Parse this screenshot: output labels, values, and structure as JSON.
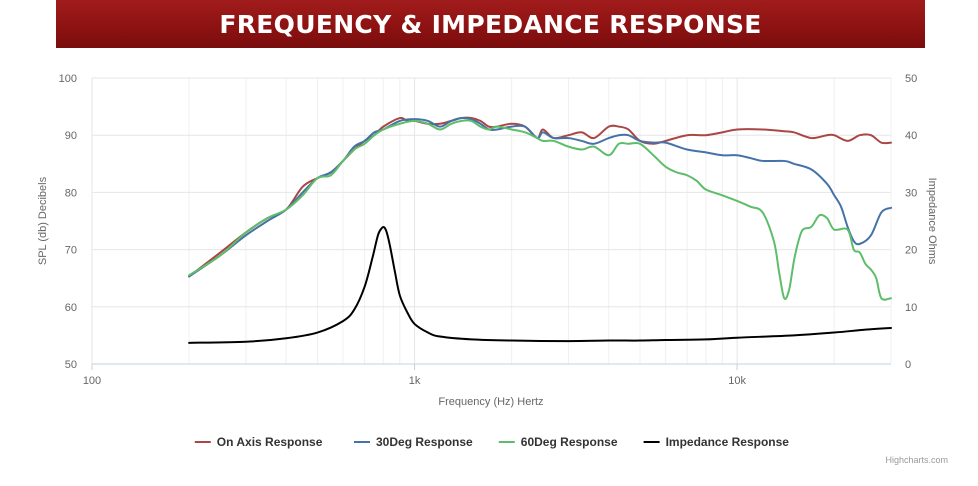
{
  "banner": {
    "title": "FREQUENCY & IMPEDANCE RESPONSE"
  },
  "credits": "Highcharts.com",
  "colors": {
    "banner": "#8e1212",
    "on_axis": "#aa4643",
    "deg30": "#4572a7",
    "deg60": "#5ebd6a",
    "impedance": "#000000",
    "grid": "#e6e6e6",
    "minor_grid": "#f0f0f0"
  },
  "chart_data": {
    "type": "line",
    "title": "FREQUENCY & IMPEDANCE RESPONSE",
    "xlabel": "Frequency (Hz) Hertz",
    "ylabel": "SPL (db) Decibels",
    "y2label": "Impedance Ohms",
    "x_scale": "log",
    "xlim": [
      100,
      30000
    ],
    "ylim": [
      50,
      100
    ],
    "y2lim": [
      0,
      50
    ],
    "x_ticks": [
      {
        "value": 100,
        "label": "100"
      },
      {
        "value": 1000,
        "label": "1k"
      },
      {
        "value": 10000,
        "label": "10k"
      }
    ],
    "y_ticks": [
      50,
      60,
      70,
      80,
      90,
      100
    ],
    "y2_ticks": [
      0,
      10,
      20,
      30,
      40,
      50
    ],
    "grid": true,
    "legend": "bottom-center",
    "series": [
      {
        "name": "On Axis Response",
        "color": "#aa4643",
        "axis": "left",
        "x": [
          200,
          250,
          300,
          350,
          400,
          450,
          500,
          550,
          600,
          650,
          700,
          750,
          800,
          900,
          950,
          1000,
          1100,
          1200,
          1300,
          1400,
          1500,
          1600,
          1700,
          1800,
          2000,
          2200,
          2400,
          2500,
          2700,
          3000,
          3300,
          3600,
          4000,
          4300,
          4600,
          5000,
          5500,
          6000,
          7000,
          8000,
          9000,
          10000,
          12000,
          14000,
          15000,
          17000,
          19000,
          20000,
          22000,
          24000,
          26000,
          28000,
          30000
        ],
        "y": [
          65.3,
          69.5,
          73,
          75.5,
          77,
          81,
          82.5,
          83.5,
          85.5,
          87.5,
          89,
          90,
          91.5,
          93,
          92.5,
          92.5,
          92,
          92,
          92.5,
          93,
          93,
          92.5,
          91.5,
          91.5,
          92,
          91.5,
          89.5,
          91,
          89.5,
          90,
          90.5,
          89.5,
          91.5,
          91.5,
          91,
          89,
          88.5,
          89,
          90,
          90,
          90.5,
          91,
          91,
          90.7,
          90.5,
          89.5,
          90,
          90,
          89,
          90,
          90,
          88.7,
          88.7
        ]
      },
      {
        "name": "30Deg Response",
        "color": "#4572a7",
        "axis": "left",
        "x": [
          200,
          250,
          300,
          350,
          400,
          450,
          500,
          550,
          600,
          650,
          700,
          750,
          800,
          900,
          1000,
          1100,
          1200,
          1300,
          1400,
          1500,
          1600,
          1700,
          1800,
          2000,
          2200,
          2400,
          2500,
          2700,
          3000,
          3300,
          3600,
          4000,
          4300,
          4600,
          5000,
          5500,
          6000,
          7000,
          8000,
          9000,
          10000,
          11000,
          12000,
          14000,
          15000,
          17000,
          19000,
          20000,
          21000,
          22000,
          23000,
          24000,
          26000,
          28000,
          30000
        ],
        "y": [
          65.3,
          69,
          72.5,
          75,
          77,
          80,
          82.5,
          83.5,
          85.5,
          88,
          89,
          90.5,
          91,
          92.5,
          92.8,
          92.5,
          91.5,
          92.5,
          93,
          92.8,
          92,
          91,
          91,
          91.5,
          91.5,
          89.5,
          90.5,
          89.5,
          89.5,
          89,
          88.5,
          89.5,
          90,
          90,
          89,
          88.7,
          88.7,
          87.5,
          87,
          86.5,
          86.5,
          86,
          85.5,
          85.5,
          85,
          84,
          81.5,
          79.5,
          77.5,
          74,
          71.5,
          71,
          72.5,
          76.5,
          77.3
        ]
      },
      {
        "name": "60Deg Response",
        "color": "#5ebd6a",
        "axis": "left",
        "x": [
          200,
          250,
          300,
          350,
          400,
          450,
          500,
          550,
          600,
          650,
          700,
          750,
          800,
          900,
          1000,
          1100,
          1200,
          1300,
          1400,
          1500,
          1600,
          1700,
          1800,
          2000,
          2200,
          2400,
          2500,
          2700,
          3000,
          3300,
          3600,
          4000,
          4300,
          4600,
          5000,
          5500,
          6000,
          6500,
          7000,
          7500,
          8000,
          9000,
          10000,
          11000,
          12000,
          13000,
          13500,
          14000,
          14500,
          15000,
          15500,
          16000,
          17000,
          18000,
          19000,
          20000,
          22000,
          23000,
          24000,
          25000,
          26000,
          27000,
          28000,
          30000
        ],
        "y": [
          65.5,
          69,
          73,
          75.5,
          77,
          79.5,
          82.5,
          83,
          85.5,
          87.5,
          88.5,
          90,
          91,
          92,
          92.5,
          92,
          91,
          92,
          92.5,
          92.5,
          91.5,
          91,
          91.5,
          91,
          90.5,
          89.5,
          89,
          89,
          88,
          87.5,
          88,
          86.5,
          88.5,
          88.5,
          88.5,
          86.5,
          84.5,
          83.5,
          83,
          82,
          80.5,
          79.5,
          78.5,
          77.5,
          76.5,
          71.5,
          66,
          61.5,
          63,
          68,
          71.5,
          73.5,
          74,
          76,
          75.5,
          73.5,
          73.5,
          70,
          69.5,
          67.5,
          66.5,
          65,
          61.5,
          61.5
        ]
      },
      {
        "name": "Impedance Response",
        "color": "#000000",
        "axis": "right",
        "x": [
          200,
          300,
          400,
          500,
          600,
          650,
          700,
          740,
          770,
          790,
          805,
          820,
          840,
          870,
          900,
          950,
          1000,
          1100,
          1200,
          1500,
          2000,
          3000,
          4000,
          5000,
          6000,
          8000,
          10000,
          15000,
          20000,
          25000,
          30000
        ],
        "y": [
          3.7,
          3.9,
          4.5,
          5.5,
          7.5,
          9.5,
          13.5,
          18.5,
          22.5,
          23.7,
          23.9,
          23,
          20.5,
          16,
          12,
          9,
          7,
          5.5,
          4.8,
          4.3,
          4.1,
          4.0,
          4.1,
          4.1,
          4.2,
          4.3,
          4.6,
          5,
          5.5,
          6,
          6.3
        ]
      }
    ]
  }
}
